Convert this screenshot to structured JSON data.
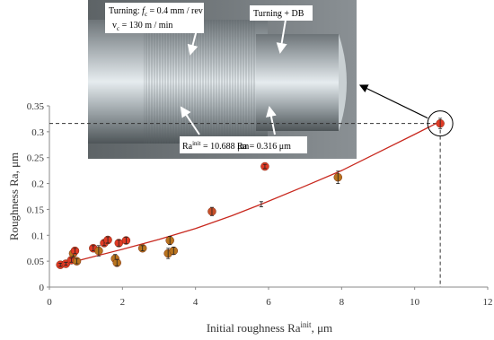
{
  "chart_data": {
    "type": "scatter",
    "x_label": [
      "Initial roughness  Ra",
      "init",
      ", μm"
    ],
    "y_label": "Roughness Ra, μm",
    "x": [
      0.3,
      0.45,
      0.6,
      0.65,
      0.7,
      0.75,
      1.2,
      1.35,
      1.5,
      1.6,
      1.8,
      1.85,
      1.9,
      2.1,
      2.55,
      3.25,
      3.3,
      3.4,
      4.45,
      5.9,
      7.9,
      10.7
    ],
    "values": [
      0.043,
      0.045,
      0.052,
      0.065,
      0.07,
      0.05,
      0.075,
      0.07,
      0.085,
      0.091,
      0.055,
      0.047,
      0.085,
      0.09,
      0.075,
      0.065,
      0.09,
      0.07,
      0.146,
      0.233,
      0.212,
      0.316
    ],
    "errors": [
      0.003,
      0.003,
      0.004,
      0.006,
      0.005,
      0.005,
      0.005,
      0.01,
      0.005,
      0.006,
      0.008,
      0.006,
      0.006,
      0.006,
      0.005,
      0.01,
      0.008,
      0.007,
      0.008,
      0.004,
      0.012,
      0.01
    ],
    "colors": [
      "#e03a25",
      "#e03a25",
      "#e03a25",
      "#b8741e",
      "#e03a25",
      "#b8741e",
      "#e03a25",
      "#b8741e",
      "#e03a25",
      "#e03a25",
      "#b8741e",
      "#b8741e",
      "#e03a25",
      "#e03a25",
      "#b8741e",
      "#b8741e",
      "#b8741e",
      "#b8741e",
      "#c8502a",
      "#e03a25",
      "#b8741e",
      "#e03a25"
    ],
    "trend": {
      "x": [
        0.3,
        1,
        2,
        3,
        4,
        5,
        5.8,
        7,
        8,
        9,
        10,
        10.7
      ],
      "values": [
        0.042,
        0.055,
        0.073,
        0.092,
        0.113,
        0.138,
        0.16,
        0.195,
        0.225,
        0.26,
        0.295,
        0.32
      ],
      "error_x": 5.8,
      "error_value": 0.16,
      "error": 0.005
    },
    "highlight": {
      "x": 10.7,
      "value": 0.316
    },
    "xlim": [
      0,
      12
    ],
    "xticks": [
      0,
      2,
      4,
      6,
      8,
      10,
      12
    ],
    "ylim": [
      0,
      0.35
    ],
    "yticks": [
      0,
      0.05,
      0.1,
      0.15,
      0.2,
      0.25,
      0.3,
      0.35
    ],
    "annotations": {
      "turning": [
        "Turning: ",
        "f",
        "c",
        " = 0.4 mm / rev"
      ],
      "speed": [
        "v",
        "c",
        " = 130 m / min"
      ],
      "db": "Turning + DB",
      "ra_init": [
        "Ra",
        "init",
        " = 10.688 μm"
      ],
      "ra": "Ra = 0.316 μm"
    }
  }
}
